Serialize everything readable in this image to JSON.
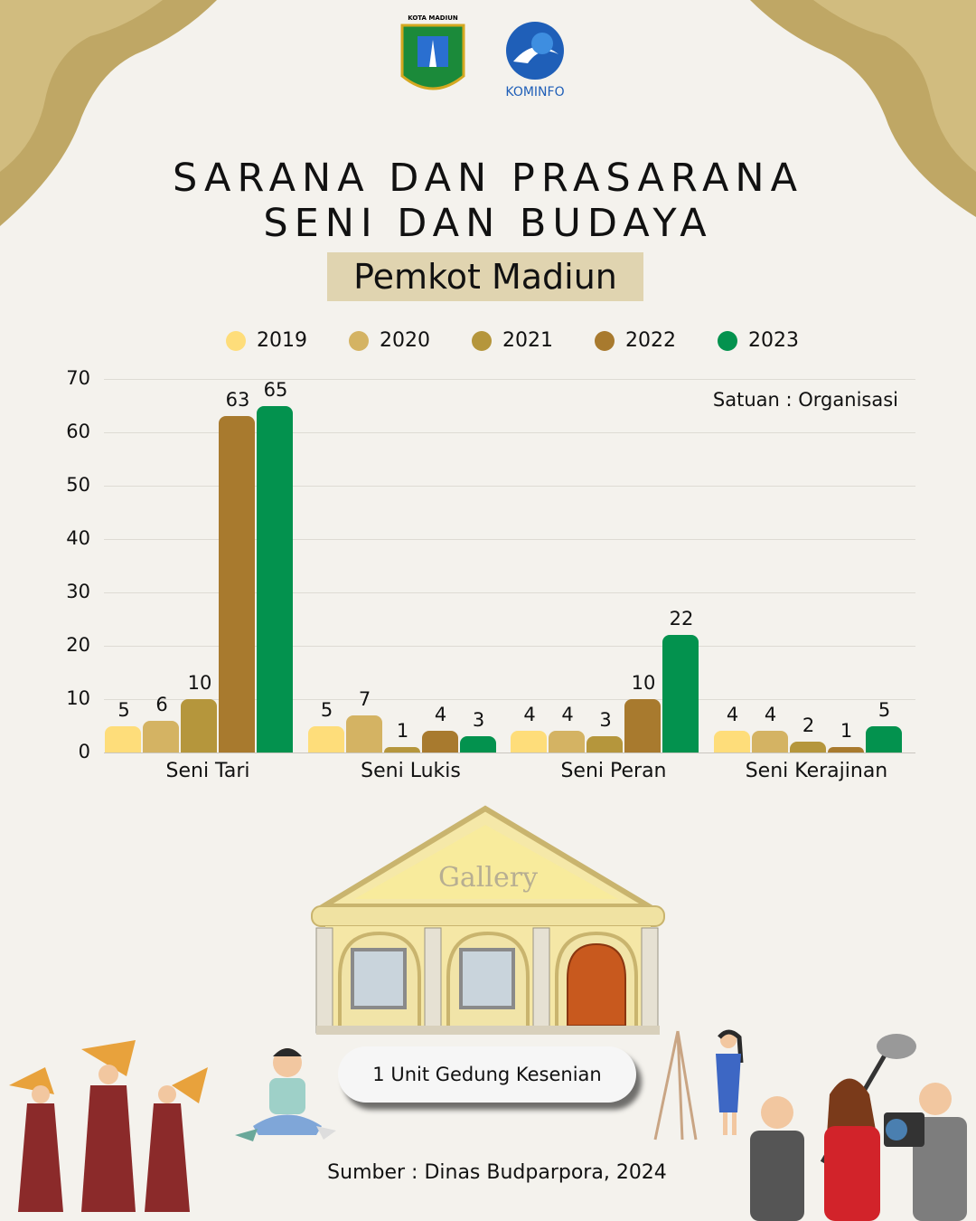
{
  "header": {
    "logo_left_text": "KOTA MADIUN",
    "logo_right_text": "KOMINFO",
    "title_line1": "SARANA DAN PRASARANA",
    "title_line2": "SENI DAN BUDAYA",
    "subtitle": "Pemkot Madiun"
  },
  "chart_data": {
    "type": "bar",
    "categories": [
      "Seni Tari",
      "Seni Lukis",
      "Seni Peran",
      "Seni Kerajinan"
    ],
    "series": [
      {
        "name": "2019",
        "color": "#FEDD7A",
        "values": [
          5,
          5,
          4,
          4
        ]
      },
      {
        "name": "2020",
        "color": "#D4B363",
        "values": [
          6,
          7,
          4,
          4
        ]
      },
      {
        "name": "2021",
        "color": "#B5963C",
        "values": [
          10,
          1,
          3,
          2
        ]
      },
      {
        "name": "2022",
        "color": "#A87A2E",
        "values": [
          63,
          4,
          10,
          1
        ]
      },
      {
        "name": "2023",
        "color": "#03924E",
        "values": [
          65,
          3,
          22,
          5
        ]
      }
    ],
    "ylim": [
      0,
      70
    ],
    "yticks": [
      "0",
      "10",
      "20",
      "30",
      "40",
      "50",
      "60",
      "70"
    ],
    "annotation": "Satuan : Organisasi",
    "grid": true,
    "legend": "top"
  },
  "gallery": {
    "sign": "Gallery",
    "button_label": "1 Unit Gedung Kesenian"
  },
  "footer": {
    "source": "Sumber : Dinas Budparpora, 2024"
  }
}
